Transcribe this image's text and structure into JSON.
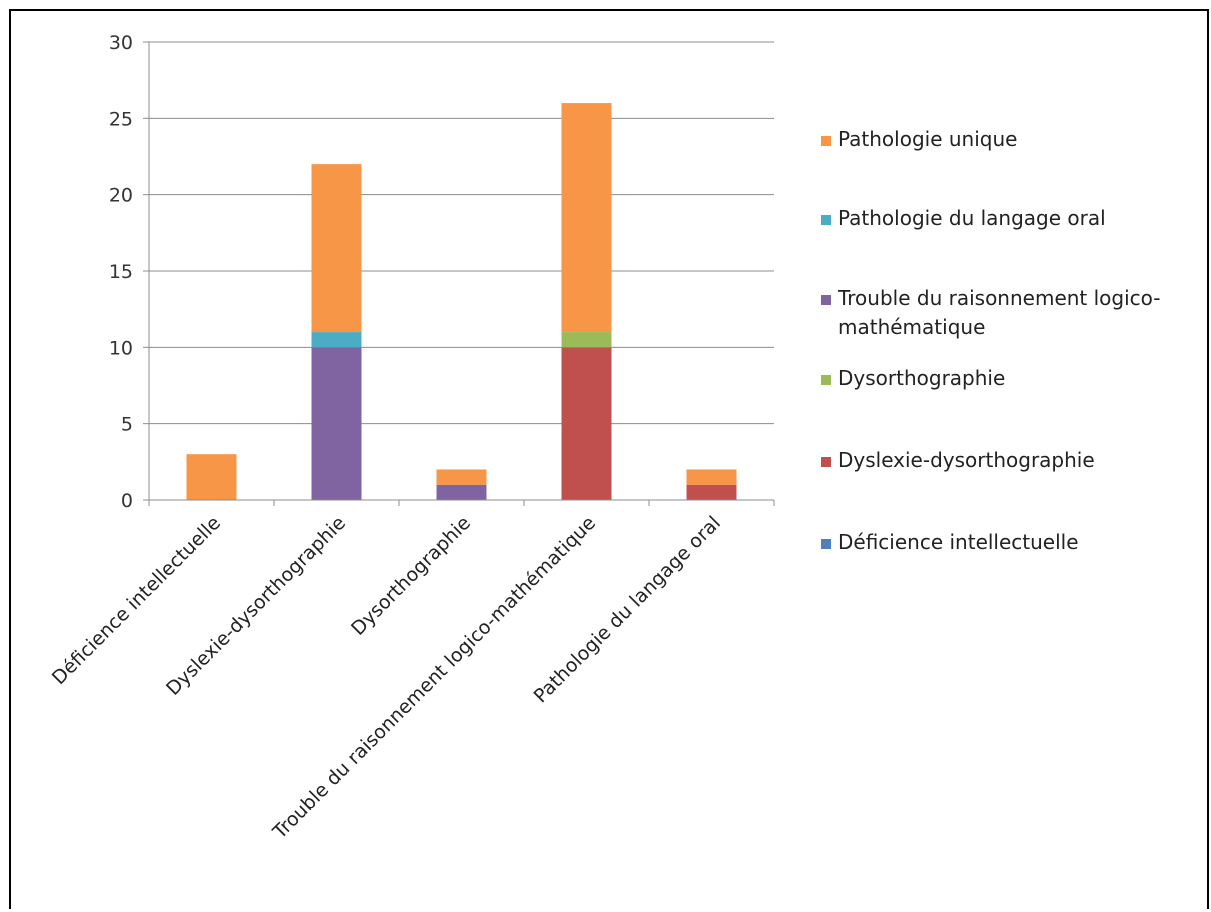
{
  "chart_data": {
    "type": "bar",
    "stacked": true,
    "categories": [
      "Déficience intellectuelle",
      "Dyslexie-dysorthographie",
      "Dysorthographie",
      "Trouble du raisonnement logico-mathématique",
      "Pathologie du langage oral"
    ],
    "series": [
      {
        "name": "Déficience intellectuelle",
        "color": "#4f81bd",
        "values": [
          0,
          0,
          0,
          0,
          0
        ]
      },
      {
        "name": "Dyslexie-dysorthographie",
        "color": "#c0504d",
        "values": [
          0,
          0,
          0,
          10,
          1
        ]
      },
      {
        "name": "Dysorthographie",
        "color": "#9bbb59",
        "values": [
          0,
          0,
          0,
          1,
          0
        ]
      },
      {
        "name": "Trouble du raisonnement logico-mathématique",
        "color": "#8064a2",
        "values": [
          0,
          10,
          1,
          0,
          0
        ]
      },
      {
        "name": "Pathologie du langage oral",
        "color": "#4bacc6",
        "values": [
          0,
          1,
          0,
          0,
          0
        ]
      },
      {
        "name": "Pathologie unique",
        "color": "#f79646",
        "values": [
          3,
          11,
          1,
          15,
          1
        ]
      }
    ],
    "legend_order": [
      "Pathologie unique",
      "Pathologie du langage oral",
      "Trouble du raisonnement logico-mathématique",
      "Dysorthographie",
      "Dyslexie-dysorthographie",
      "Déficience intellectuelle"
    ],
    "legend_lines": {
      "Trouble du raisonnement logico-mathématique": [
        "Trouble du raisonnement logico-",
        "mathématique"
      ]
    },
    "y_ticks": [
      0,
      5,
      10,
      15,
      20,
      25,
      30
    ],
    "ylim": [
      0,
      30
    ],
    "grid": true,
    "legend_position": "right",
    "title": "",
    "xlabel": "",
    "ylabel": ""
  }
}
